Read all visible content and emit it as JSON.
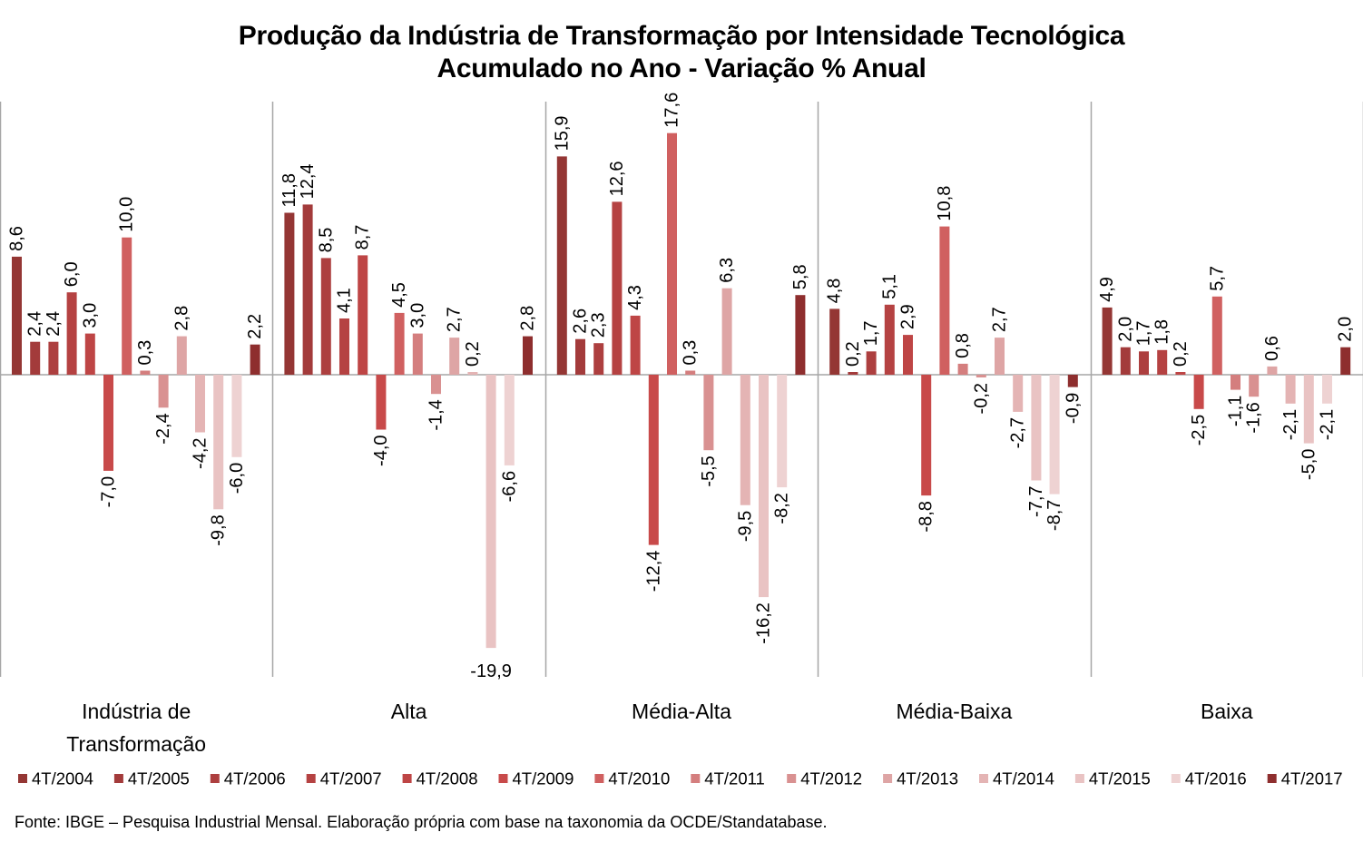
{
  "title_line1": "Produção da Indústria de Transformação por Intensidade Tecnológica",
  "title_line2": "Acumulado no Ano - Variação % Anual",
  "source": "Fonte: IBGE – Pesquisa Industrial Mensal. Elaboração própria com base na taxonomia da OCDE/Standatabase.",
  "chart_data": {
    "type": "bar",
    "title": "Produção da Indústria de Transformação por Intensidade Tecnológica",
    "subtitle": "Acumulado no Ano - Variação % Anual",
    "categories": [
      "Indústria de Transformação",
      "Alta",
      "Média-Alta",
      "Média-Baixa",
      "Baixa"
    ],
    "ylim": [
      -22,
      20
    ],
    "grid": false,
    "legend_position": "bottom",
    "series": [
      {
        "name": "4T/2004",
        "color": "#943634",
        "labels": [
          "8,6",
          "11,8",
          "15,9",
          "4,8",
          "4,9"
        ],
        "values": [
          8.6,
          11.8,
          15.9,
          4.8,
          4.9
        ]
      },
      {
        "name": "4T/2005",
        "color": "#A33B3B",
        "labels": [
          "2,4",
          "12,4",
          "2,6",
          "0,2",
          "2,0"
        ],
        "values": [
          2.4,
          12.4,
          2.6,
          0.2,
          2.0
        ]
      },
      {
        "name": "4T/2006",
        "color": "#AD3F3F",
        "labels": [
          "2,4",
          "8,5",
          "2,3",
          "1,7",
          "1,7"
        ],
        "values": [
          2.4,
          8.5,
          2.3,
          1.7,
          1.7
        ]
      },
      {
        "name": "4T/2007",
        "color": "#B54242",
        "labels": [
          "6,0",
          "4,1",
          "12,6",
          "5,1",
          "1,8"
        ],
        "values": [
          6.0,
          4.1,
          12.6,
          5.1,
          1.8
        ]
      },
      {
        "name": "4T/2008",
        "color": "#BE4545",
        "labels": [
          "3,0",
          "8,7",
          "4,3",
          "2,9",
          "0,2"
        ],
        "values": [
          3.0,
          8.7,
          4.3,
          2.9,
          0.2
        ]
      },
      {
        "name": "4T/2009",
        "color": "#C84A4A",
        "labels": [
          "-7,0",
          "-4,0",
          "-12,4",
          "-8,8",
          "-2,5"
        ],
        "values": [
          -7.0,
          -4.0,
          -12.4,
          -8.8,
          -2.5
        ]
      },
      {
        "name": "4T/2010",
        "color": "#D06060",
        "labels": [
          "10,0",
          "4,5",
          "17,6",
          "10,8",
          "5,7"
        ],
        "values": [
          10.0,
          4.5,
          17.6,
          10.8,
          5.7
        ]
      },
      {
        "name": "4T/2011",
        "color": "#D47E7E",
        "labels": [
          "0,3",
          "3,0",
          "0,3",
          "0,8",
          "-1,1"
        ],
        "values": [
          0.3,
          3.0,
          0.3,
          0.8,
          -1.1
        ]
      },
      {
        "name": "4T/2012",
        "color": "#D99191",
        "labels": [
          "-2,4",
          "-1,4",
          "-5,5",
          "-0,2",
          "-1,6"
        ],
        "values": [
          -2.4,
          -1.4,
          -5.5,
          -0.2,
          -1.6
        ]
      },
      {
        "name": "4T/2013",
        "color": "#DEA5A5",
        "labels": [
          "2,8",
          "2,7",
          "6,3",
          "2,7",
          "0,6"
        ],
        "values": [
          2.8,
          2.7,
          6.3,
          2.7,
          0.6
        ]
      },
      {
        "name": "4T/2014",
        "color": "#E4B4B4",
        "labels": [
          "-4,2",
          "0,2",
          "-9,5",
          "-2,7",
          "-2,1"
        ],
        "values": [
          -4.2,
          0.2,
          -9.5,
          -2.7,
          -2.1
        ]
      },
      {
        "name": "4T/2015",
        "color": "#E9C3C3",
        "labels": [
          "-9,8",
          "-19,9",
          "-16,2",
          "-7,7",
          "-5,0"
        ],
        "values": [
          -9.8,
          -19.9,
          -16.2,
          -7.7,
          -5.0
        ]
      },
      {
        "name": "4T/2016",
        "color": "#EED2D2",
        "labels": [
          "-6,0",
          "-6,6",
          "-8,2",
          "-8,7",
          "-2,1"
        ],
        "values": [
          -6.0,
          -6.6,
          -8.2,
          -8.7,
          -2.1
        ]
      },
      {
        "name": "4T/2017",
        "color": "#8E2E2E",
        "labels": [
          "2,2",
          "2,8",
          "5,8",
          "-0,9",
          "2,0"
        ],
        "values": [
          2.2,
          2.8,
          5.8,
          -0.9,
          2.0
        ]
      }
    ]
  }
}
